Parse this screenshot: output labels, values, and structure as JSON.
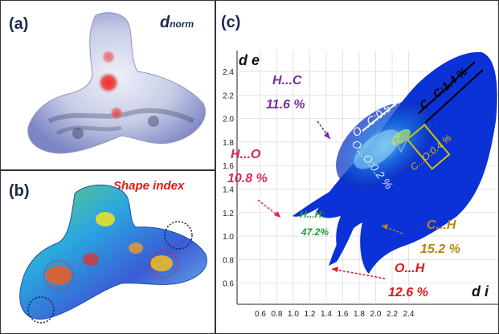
{
  "panel_a": {
    "label": "(a)",
    "title_main": "d",
    "title_sub": "norm"
  },
  "panel_b": {
    "label": "(b)",
    "title": "Shape index"
  },
  "panel_c": {
    "label": "(c)",
    "axis_x_label": "d i",
    "axis_y_label": "d e",
    "x_ticks": [
      "0.6",
      "0.8",
      "1.0",
      "1.2",
      "1.4",
      "1.6",
      "1.8",
      "2.0",
      "2.2",
      "2.4"
    ],
    "y_ticks": [
      "2.4",
      "2.2",
      "2.0",
      "1.8",
      "1.6",
      "1.4",
      "1.2",
      "1.0",
      "0.8",
      "0.6"
    ],
    "annotations": {
      "hc_label": "H...C",
      "hc_value": "11.6 %",
      "ho_label": "H...O",
      "ho_value": "10.8 %",
      "hh_label": "H...H:",
      "hh_value": "47.2%",
      "ch_label": "C...H",
      "ch_value": "15.2 %",
      "oh_label": "O...H",
      "oh_value": "12.6 %",
      "oc_label": "O...C:0.5 %",
      "cc_label": "C...C:1.4 %",
      "co_label": "C...O:0.4 %",
      "oo_label": "O...O:0.2 %"
    },
    "colors": {
      "hc": "#7a2c9e",
      "ho": "#e0245e",
      "hh": "#1e9a3a",
      "ch": "#b8860b",
      "oh": "#e0151b",
      "co": "#d4c200"
    }
  }
}
